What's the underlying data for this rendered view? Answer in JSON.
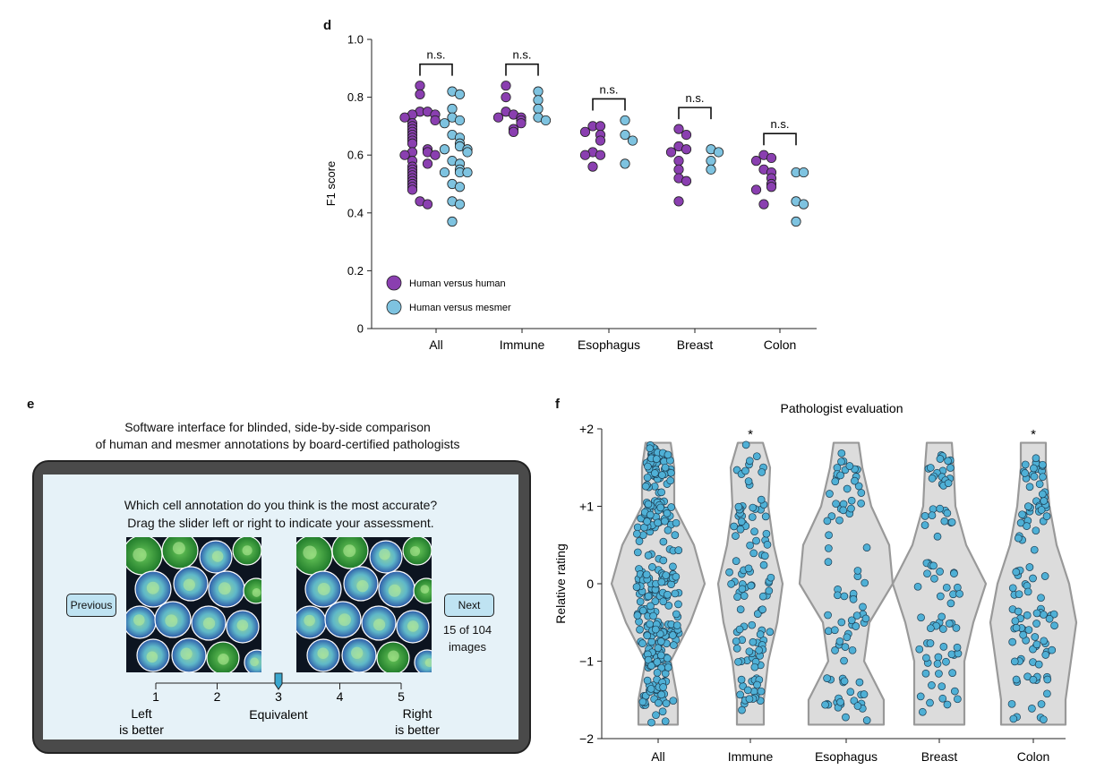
{
  "panel_letters": {
    "d": "d",
    "e": "e",
    "f": "f"
  },
  "panel_e": {
    "title_line1": "Software interface for blinded, side-by-side comparison",
    "title_line2": "of human and mesmer annotations by board-certified pathologists",
    "question_line1": "Which cell annotation do you think is the most accurate?",
    "question_line2": "Drag the slider left or right to indicate your assessment.",
    "previous_label": "Previous",
    "next_label": "Next",
    "counter_line1": "15 of 104",
    "counter_line2": "images",
    "slider_ticks": [
      "1",
      "2",
      "3",
      "4",
      "5"
    ],
    "slider_value": 3,
    "left_label_1": "Left",
    "left_label_2": "is better",
    "mid_label": "Equivalent",
    "right_label_1": "Right",
    "right_label_2": "is better",
    "colors": {
      "screen": "#e6f2f8",
      "button": "#bfe3f2",
      "device": "#4a4a4a",
      "handle": "#3aa7cf"
    }
  },
  "chart_data": [
    {
      "type": "scatter",
      "panel": "d",
      "ylabel": "F1 score",
      "ylim": [
        0,
        1.0
      ],
      "yticks": [
        "0",
        "0.2",
        "0.4",
        "0.6",
        "0.8",
        "1.0"
      ],
      "categories": [
        "All",
        "Immune",
        "Esophagus",
        "Breast",
        "Colon"
      ],
      "legend": {
        "placement": "bottom-left"
      },
      "significance": [
        "n.s.",
        "n.s.",
        "n.s.",
        "n.s.",
        "n.s."
      ],
      "series": [
        {
          "name": "Human versus human",
          "color": "#8a3fb0",
          "values": [
            [
              0.84,
              0.81,
              0.75,
              0.75,
              0.74,
              0.74,
              0.73,
              0.72,
              0.71,
              0.7,
              0.69,
              0.68,
              0.67,
              0.66,
              0.65,
              0.64,
              0.62,
              0.61,
              0.61,
              0.6,
              0.6,
              0.58,
              0.57,
              0.56,
              0.55,
              0.54,
              0.53,
              0.52,
              0.51,
              0.5,
              0.49,
              0.48,
              0.44,
              0.43
            ],
            [
              0.84,
              0.8,
              0.75,
              0.74,
              0.73,
              0.73,
              0.72,
              0.71,
              0.69,
              0.68
            ],
            [
              0.7,
              0.7,
              0.68,
              0.67,
              0.65,
              0.61,
              0.6,
              0.6,
              0.56
            ],
            [
              0.69,
              0.67,
              0.63,
              0.62,
              0.61,
              0.58,
              0.55,
              0.52,
              0.51,
              0.44
            ],
            [
              0.6,
              0.59,
              0.58,
              0.55,
              0.54,
              0.52,
              0.5,
              0.49,
              0.48,
              0.43
            ]
          ]
        },
        {
          "name": "Human versus mesmer",
          "color": "#7ec3e0",
          "values": [
            [
              0.82,
              0.81,
              0.76,
              0.73,
              0.72,
              0.71,
              0.67,
              0.66,
              0.64,
              0.63,
              0.62,
              0.62,
              0.61,
              0.58,
              0.57,
              0.55,
              0.54,
              0.54,
              0.54,
              0.5,
              0.49,
              0.44,
              0.43,
              0.37
            ],
            [
              0.82,
              0.79,
              0.76,
              0.73,
              0.72
            ],
            [
              0.72,
              0.67,
              0.65,
              0.57
            ],
            [
              0.62,
              0.61,
              0.58,
              0.55
            ],
            [
              0.54,
              0.54,
              0.44,
              0.43,
              0.37
            ]
          ]
        }
      ]
    },
    {
      "type": "violin",
      "panel": "f",
      "title": "Pathologist evaluation",
      "ylabel": "Relative rating",
      "ylim": [
        -2,
        2
      ],
      "yticks": [
        "−2",
        "−1",
        "0",
        "+1",
        "+2"
      ],
      "categories": [
        "All",
        "Immune",
        "Esophagus",
        "Breast",
        "Colon"
      ],
      "significance": [
        "",
        "*",
        "",
        "",
        "*"
      ],
      "point_color": "#4fb0d6",
      "violin_fill": "#dcdcdc",
      "violin_stroke": "#999999",
      "points_per_category": [
        300,
        115,
        85,
        80,
        110
      ]
    }
  ]
}
